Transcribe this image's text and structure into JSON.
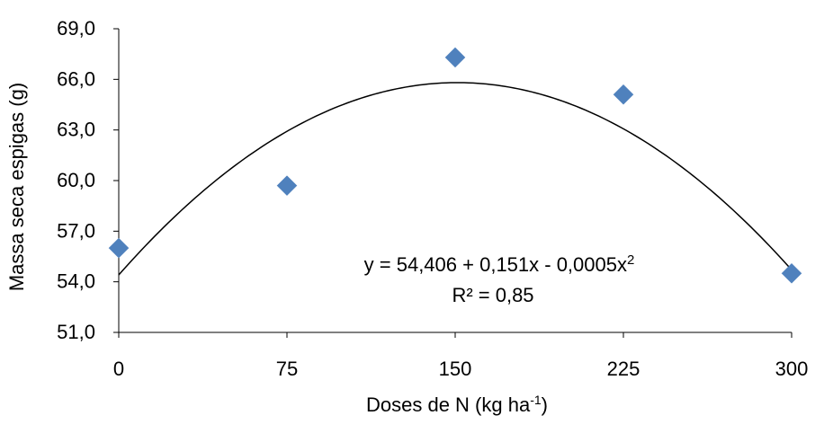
{
  "chart_data": {
    "type": "scatter",
    "title": "",
    "xlabel": "Doses de N (kg ha",
    "xlabel_sup": "-1",
    "xlabel_close": ")",
    "ylabel": "Massa seca espigas (g)",
    "xlim": [
      0,
      300
    ],
    "ylim": [
      51,
      69
    ],
    "xticks": [
      0,
      75,
      150,
      225,
      300
    ],
    "xtick_labels": [
      "0",
      "75",
      "150",
      "225",
      "300"
    ],
    "yticks": [
      51,
      54,
      57,
      60,
      63,
      66,
      69
    ],
    "ytick_labels": [
      "51,0",
      "54,0",
      "57,0",
      "60,0",
      "63,0",
      "66,0",
      "69,0"
    ],
    "grid": false,
    "series": [
      {
        "marker": "diamond",
        "color": "#4f81bd",
        "x": [
          0,
          75,
          150,
          225,
          300
        ],
        "y": [
          56.0,
          59.7,
          67.3,
          65.1,
          54.5
        ]
      }
    ],
    "trendline": {
      "type": "polynomial",
      "color": "#000000",
      "coefficients": [
        54.406,
        0.151,
        -0.0005
      ]
    },
    "annotation": {
      "equation_main": "y = 54,406 + 0,151x - 0,0005x",
      "equation_sup": "2",
      "r2": "R² = 0,85"
    }
  }
}
